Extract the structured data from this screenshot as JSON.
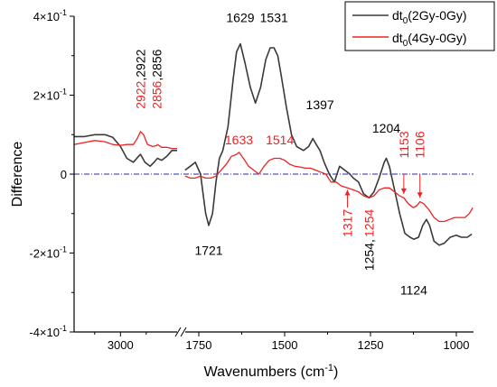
{
  "chart_data": {
    "type": "line",
    "xlabel": "Wavenumbers (cm",
    "xlabel_sup": "-1",
    "xlabel_end": ")",
    "ylabel": "Difference",
    "ylim": [
      -0.4,
      0.4
    ],
    "x_segments": [
      [
        3180,
        2780
      ],
      [
        1800,
        950
      ]
    ],
    "x_ticks": [
      {
        "value": 3000,
        "label": "3000"
      },
      {
        "value": 1750,
        "label": "1750"
      },
      {
        "value": 1500,
        "label": "1500"
      },
      {
        "value": 1250,
        "label": "1250"
      },
      {
        "value": 1000,
        "label": "1000"
      }
    ],
    "y_ticks": [
      {
        "value": 0.4,
        "base": "4×10",
        "exp": "-1"
      },
      {
        "value": 0.2,
        "base": "2×10",
        "exp": "-1"
      },
      {
        "value": 0.0,
        "base": "0",
        "exp": ""
      },
      {
        "value": -0.2,
        "base": "-2×10",
        "exp": "-1"
      },
      {
        "value": -0.4,
        "base": "-4×10",
        "exp": "-1"
      }
    ],
    "zero_line": true,
    "legend_position": "top-right",
    "series": [
      {
        "name": "dt0(2Gy-0Gy)",
        "name_base": "dt",
        "name_sub": "0",
        "name_rest": "(2Gy-0Gy)",
        "color": "#3a3a3a",
        "segments": [
          [
            [
              3180,
              0.095
            ],
            [
              3140,
              0.095
            ],
            [
              3100,
              0.1
            ],
            [
              3060,
              0.1
            ],
            [
              3030,
              0.093
            ],
            [
              3000,
              0.07
            ],
            [
              2975,
              0.04
            ],
            [
              2950,
              0.03
            ],
            [
              2930,
              0.045
            ],
            [
              2922,
              0.05
            ],
            [
              2905,
              0.03
            ],
            [
              2885,
              0.02
            ],
            [
              2870,
              0.03
            ],
            [
              2856,
              0.04
            ],
            [
              2840,
              0.035
            ],
            [
              2820,
              0.045
            ],
            [
              2800,
              0.06
            ],
            [
              2780,
              0.06
            ]
          ],
          [
            [
              1790,
              0.01
            ],
            [
              1775,
              0.02
            ],
            [
              1760,
              0.03
            ],
            [
              1745,
              0.0
            ],
            [
              1730,
              -0.1
            ],
            [
              1721,
              -0.13
            ],
            [
              1710,
              -0.1
            ],
            [
              1700,
              -0.02
            ],
            [
              1690,
              0.04
            ],
            [
              1680,
              0.06
            ],
            [
              1665,
              0.12
            ],
            [
              1650,
              0.24
            ],
            [
              1640,
              0.31
            ],
            [
              1629,
              0.33
            ],
            [
              1615,
              0.28
            ],
            [
              1600,
              0.22
            ],
            [
              1585,
              0.18
            ],
            [
              1570,
              0.22
            ],
            [
              1555,
              0.29
            ],
            [
              1542,
              0.32
            ],
            [
              1531,
              0.32
            ],
            [
              1520,
              0.3
            ],
            [
              1510,
              0.25
            ],
            [
              1495,
              0.17
            ],
            [
              1480,
              0.1
            ],
            [
              1465,
              0.07
            ],
            [
              1445,
              0.06
            ],
            [
              1430,
              0.07
            ],
            [
              1418,
              0.09
            ],
            [
              1408,
              0.075
            ],
            [
              1397,
              0.06
            ],
            [
              1385,
              0.03
            ],
            [
              1370,
              0.0
            ],
            [
              1355,
              -0.02
            ],
            [
              1340,
              0.02
            ],
            [
              1325,
              0.01
            ],
            [
              1310,
              0.0
            ],
            [
              1300,
              -0.01
            ],
            [
              1285,
              -0.02
            ],
            [
              1270,
              -0.05
            ],
            [
              1254,
              -0.06
            ],
            [
              1240,
              -0.045
            ],
            [
              1225,
              -0.01
            ],
            [
              1210,
              0.03
            ],
            [
              1204,
              0.04
            ],
            [
              1195,
              0.02
            ],
            [
              1180,
              -0.04
            ],
            [
              1165,
              -0.1
            ],
            [
              1150,
              -0.15
            ],
            [
              1135,
              -0.16
            ],
            [
              1124,
              -0.165
            ],
            [
              1110,
              -0.16
            ],
            [
              1098,
              -0.13
            ],
            [
              1087,
              -0.115
            ],
            [
              1078,
              -0.13
            ],
            [
              1065,
              -0.17
            ],
            [
              1050,
              -0.18
            ],
            [
              1035,
              -0.175
            ],
            [
              1018,
              -0.16
            ],
            [
              1000,
              -0.155
            ],
            [
              985,
              -0.16
            ],
            [
              968,
              -0.16
            ],
            [
              955,
              -0.152
            ]
          ]
        ]
      },
      {
        "name": "dt0(4Gy-0Gy)",
        "name_base": "dt",
        "name_sub": "0",
        "name_rest": "(4Gy-0Gy)",
        "color": "#ee2222",
        "segments": [
          [
            [
              3180,
              0.075
            ],
            [
              3140,
              0.08
            ],
            [
              3100,
              0.085
            ],
            [
              3060,
              0.082
            ],
            [
              3030,
              0.075
            ],
            [
              3000,
              0.073
            ],
            [
              2975,
              0.075
            ],
            [
              2950,
              0.075
            ],
            [
              2935,
              0.09
            ],
            [
              2922,
              0.108
            ],
            [
              2910,
              0.1
            ],
            [
              2895,
              0.075
            ],
            [
              2875,
              0.07
            ],
            [
              2860,
              0.072
            ],
            [
              2856,
              0.075
            ],
            [
              2840,
              0.068
            ],
            [
              2820,
              0.068
            ],
            [
              2800,
              0.065
            ],
            [
              2780,
              0.065
            ]
          ],
          [
            [
              1790,
              -0.005
            ],
            [
              1775,
              -0.01
            ],
            [
              1760,
              -0.01
            ],
            [
              1745,
              -0.005
            ],
            [
              1730,
              -0.01
            ],
            [
              1715,
              -0.01
            ],
            [
              1700,
              -0.005
            ],
            [
              1685,
              0.01
            ],
            [
              1670,
              0.025
            ],
            [
              1655,
              0.045
            ],
            [
              1640,
              0.05
            ],
            [
              1633,
              0.055
            ],
            [
              1620,
              0.04
            ],
            [
              1605,
              0.02
            ],
            [
              1590,
              0.01
            ],
            [
              1575,
              0.0
            ],
            [
              1560,
              0.02
            ],
            [
              1545,
              0.035
            ],
            [
              1530,
              0.04
            ],
            [
              1514,
              0.04
            ],
            [
              1500,
              0.035
            ],
            [
              1485,
              0.025
            ],
            [
              1470,
              0.02
            ],
            [
              1455,
              0.018
            ],
            [
              1440,
              0.015
            ],
            [
              1425,
              0.015
            ],
            [
              1410,
              0.01
            ],
            [
              1395,
              0.005
            ],
            [
              1380,
              0.0
            ],
            [
              1365,
              -0.02
            ],
            [
              1350,
              -0.02
            ],
            [
              1335,
              -0.03
            ],
            [
              1317,
              -0.035
            ],
            [
              1300,
              -0.04
            ],
            [
              1285,
              -0.045
            ],
            [
              1270,
              -0.055
            ],
            [
              1254,
              -0.06
            ],
            [
              1240,
              -0.055
            ],
            [
              1225,
              -0.04
            ],
            [
              1210,
              -0.035
            ],
            [
              1195,
              -0.035
            ],
            [
              1180,
              -0.045
            ],
            [
              1165,
              -0.055
            ],
            [
              1153,
              -0.06
            ],
            [
              1140,
              -0.075
            ],
            [
              1125,
              -0.085
            ],
            [
              1115,
              -0.08
            ],
            [
              1106,
              -0.07
            ],
            [
              1095,
              -0.075
            ],
            [
              1080,
              -0.09
            ],
            [
              1065,
              -0.11
            ],
            [
              1050,
              -0.12
            ],
            [
              1035,
              -0.12
            ],
            [
              1020,
              -0.115
            ],
            [
              1005,
              -0.11
            ],
            [
              990,
              -0.11
            ],
            [
              975,
              -0.11
            ],
            [
              962,
              -0.1
            ],
            [
              952,
              -0.085
            ]
          ]
        ]
      }
    ],
    "annotations": [
      {
        "text": "1629",
        "x": 1629,
        "y": 0.385,
        "color": "#000000",
        "rot": 0
      },
      {
        "text": "1531",
        "x": 1531,
        "y": 0.385,
        "color": "#000000",
        "rot": 0
      },
      {
        "text": "1397",
        "x": 1397,
        "y": 0.165,
        "color": "#000000",
        "rot": 0
      },
      {
        "text": "1204",
        "x": 1204,
        "y": 0.105,
        "color": "#000000",
        "rot": 0
      },
      {
        "text": "1721",
        "x": 1721,
        "y": -0.205,
        "color": "#000000",
        "rot": 0
      },
      {
        "text": "1124",
        "x": 1124,
        "y": -0.305,
        "color": "#000000",
        "rot": 0
      },
      {
        "text": "1633",
        "x": 1633,
        "y": 0.075,
        "color": "#ee2222",
        "rot": 0
      },
      {
        "text": "1514",
        "x": 1514,
        "y": 0.075,
        "color": "#ee2222",
        "rot": 0
      },
      {
        "text": "1153",
        "x": 1153,
        "y": 0.04,
        "color": "#ee2222",
        "rot": -90
      },
      {
        "text": "1106",
        "x": 1106,
        "y": 0.04,
        "color": "#ee2222",
        "rot": -90
      },
      {
        "text": "1317",
        "x": 1317,
        "y": -0.16,
        "color": "#ee2222",
        "rot": -90
      },
      {
        "text": "1254",
        "x": 1254,
        "y": -0.16,
        "color": "#ee2222",
        "rot": -90
      },
      {
        "text": "1254,",
        "x": 1254,
        "y": -0.245,
        "color": "#000000",
        "rot": -90
      }
    ],
    "split_labels": [
      {
        "parts": [
          {
            "text": "2922",
            "color": "#ee2222"
          },
          {
            "text": ",2922",
            "color": "#000000"
          }
        ],
        "x": 2922,
        "y": 0.165
      },
      {
        "parts": [
          {
            "text": "2856",
            "color": "#ee2222"
          },
          {
            "text": ",2856",
            "color": "#000000"
          }
        ],
        "x": 2922,
        "y": 0.165
      }
    ],
    "arrows": [
      {
        "x": 1153,
        "y_from": 0.0,
        "y_to": -0.05,
        "color": "#ee2222"
      },
      {
        "x": 1106,
        "y_from": 0.0,
        "y_to": -0.06,
        "color": "#ee2222"
      },
      {
        "x": 1317,
        "y_from": -0.085,
        "y_to": -0.04,
        "color": "#ee2222"
      }
    ]
  }
}
